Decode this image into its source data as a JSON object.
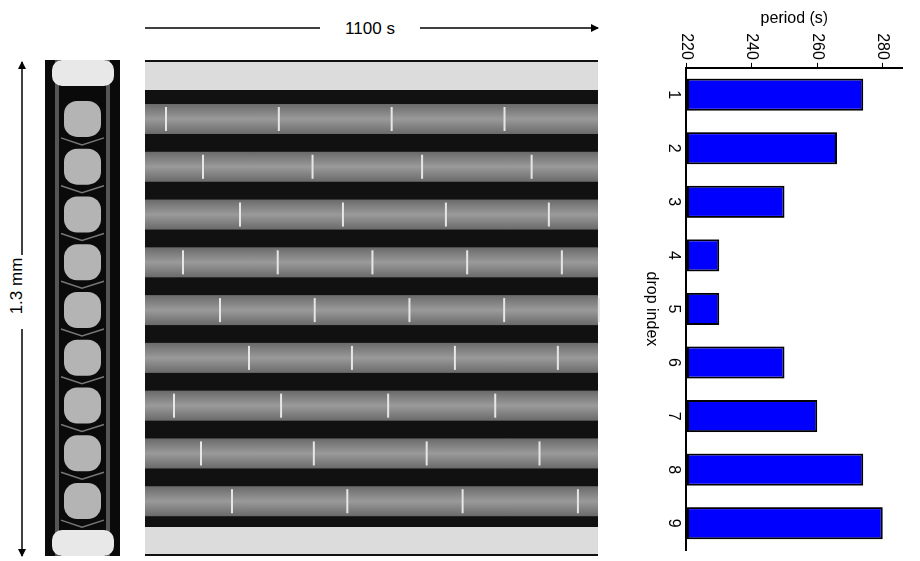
{
  "chart_data": {
    "type": "bar",
    "orientation": "horizontal",
    "xlabel": "period (s)",
    "ylabel": "drop index",
    "categories": [
      "1",
      "2",
      "3",
      "4",
      "5",
      "6",
      "7",
      "8",
      "9"
    ],
    "values": [
      274,
      266,
      250,
      230,
      230,
      250,
      260,
      274,
      280
    ],
    "color": "#0000ff",
    "xlim": [
      220,
      286
    ],
    "xticks": [
      220,
      240,
      260,
      280
    ],
    "grid": false
  },
  "figure": {
    "length_scale_bar": "1.3 mm",
    "time_scale_bar": {
      "value": 1100,
      "label": "1100 s"
    }
  }
}
